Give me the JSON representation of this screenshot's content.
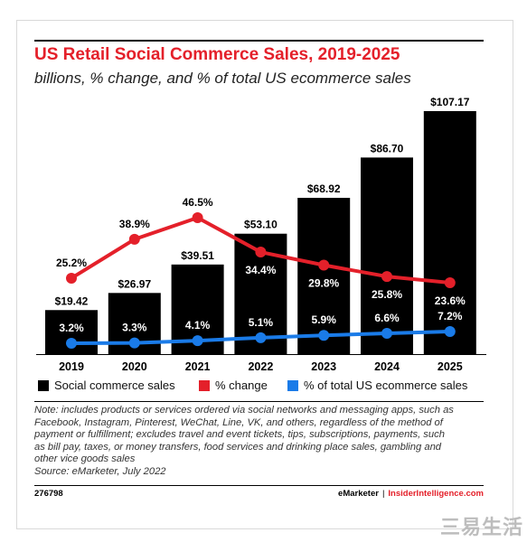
{
  "header": {
    "title": "US Retail Social Commerce Sales, 2019-2025",
    "subtitle": "billions, % change, and % of total US ecommerce sales"
  },
  "chart_data": {
    "type": "bar",
    "categories": [
      "2019",
      "2020",
      "2021",
      "2022",
      "2023",
      "2024",
      "2025"
    ],
    "series": [
      {
        "name": "Social commerce sales",
        "type": "bar",
        "color": "#000000",
        "values": [
          19.42,
          26.97,
          39.51,
          53.1,
          68.92,
          86.7,
          107.17
        ],
        "labels": [
          "$19.42",
          "$26.97",
          "$39.51",
          "$53.10",
          "$68.92",
          "$86.70",
          "$107.17"
        ]
      },
      {
        "name": "% change",
        "type": "line",
        "color": "#e4202a",
        "values": [
          25.2,
          38.9,
          46.5,
          34.4,
          29.8,
          25.8,
          23.6
        ],
        "labels": [
          "25.2%",
          "38.9%",
          "46.5%",
          "34.4%",
          "29.8%",
          "25.8%",
          "23.6%"
        ]
      },
      {
        "name": "% of total US ecommerce sales",
        "type": "line",
        "color": "#1a7be8",
        "values": [
          3.2,
          3.3,
          4.1,
          5.1,
          5.9,
          6.6,
          7.2
        ],
        "labels": [
          "3.2%",
          "3.3%",
          "4.1%",
          "5.1%",
          "5.9%",
          "6.6%",
          "7.2%"
        ]
      }
    ],
    "ylim_bars": [
      0,
      107.17
    ],
    "grid": false,
    "legend_position": "bottom"
  },
  "note": {
    "lines": [
      "Note: includes products or services ordered via social networks and messaging apps, such as",
      "Facebook, Instagram, Pinterest, WeChat, Line, VK, and others, regardless of the method of",
      "payment or fulfillment; excludes travel and event tickets, tips, subscriptions, payments, such",
      "as bill pay, taxes, or money transfers, food services and drinking place sales, gambling and",
      "other vice goods sales"
    ],
    "source": "Source: eMarketer, July 2022"
  },
  "footer": {
    "id": "276798",
    "brand": "eMarketer",
    "separator": "|",
    "site": "InsiderIntelligence.com"
  },
  "watermark": "三易生活"
}
